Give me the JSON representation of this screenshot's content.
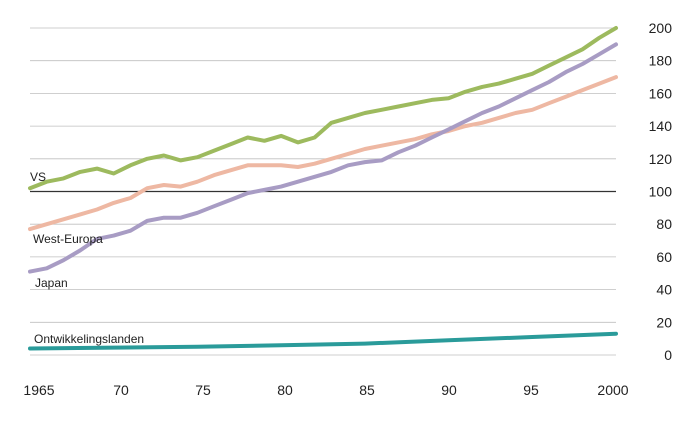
{
  "chart_data": {
    "type": "line",
    "title": "",
    "xlabel": "",
    "ylabel": "",
    "xlim": [
      1965,
      2000
    ],
    "ylim": [
      0,
      200
    ],
    "grid": true,
    "x_ticks": [
      "1965",
      "70",
      "75",
      "80",
      "85",
      "90",
      "95",
      "2000"
    ],
    "y_ticks": [
      "0",
      "20",
      "40",
      "60",
      "80",
      "100",
      "120",
      "140",
      "160",
      "180",
      "200"
    ],
    "colors": {
      "VS": "#9dba5e",
      "West-Europa": "#eeb8a3",
      "Japan": "#a89cc4",
      "Ontwikkelingslanden": "#2a9b9a",
      "grid": "#bfbfbf",
      "baseline": "#333333"
    },
    "series": [
      {
        "name": "VS",
        "x": [
          1965,
          1966,
          1967,
          1968,
          1969,
          1970,
          1971,
          1972,
          1973,
          1974,
          1975,
          1976,
          1977,
          1978,
          1979,
          1980,
          1981,
          1982,
          1983,
          1984,
          1985,
          1986,
          1987,
          1988,
          1989,
          1990,
          1991,
          1992,
          1993,
          1994,
          1995,
          1996,
          1997,
          1998,
          1999,
          2000
        ],
        "y": [
          102,
          106,
          108,
          112,
          114,
          111,
          116,
          120,
          122,
          119,
          121,
          125,
          129,
          133,
          131,
          134,
          130,
          133,
          142,
          145,
          148,
          150,
          152,
          154,
          156,
          157,
          161,
          164,
          166,
          169,
          172,
          177,
          182,
          187,
          194,
          200
        ]
      },
      {
        "name": "West-Europa",
        "x": [
          1965,
          1966,
          1967,
          1968,
          1969,
          1970,
          1971,
          1972,
          1973,
          1974,
          1975,
          1976,
          1977,
          1978,
          1979,
          1980,
          1981,
          1982,
          1983,
          1984,
          1985,
          1986,
          1987,
          1988,
          1989,
          1990,
          1991,
          1992,
          1993,
          1994,
          1995,
          1996,
          1997,
          1998,
          1999,
          2000
        ],
        "y": [
          77,
          80,
          83,
          86,
          89,
          93,
          96,
          102,
          104,
          103,
          106,
          110,
          113,
          116,
          116,
          116,
          115,
          117,
          120,
          123,
          126,
          128,
          130,
          132,
          135,
          137,
          140,
          142,
          145,
          148,
          150,
          154,
          158,
          162,
          166,
          170
        ]
      },
      {
        "name": "Japan",
        "x": [
          1965,
          1966,
          1967,
          1968,
          1969,
          1970,
          1971,
          1972,
          1973,
          1974,
          1975,
          1976,
          1977,
          1978,
          1979,
          1980,
          1981,
          1982,
          1983,
          1984,
          1985,
          1986,
          1987,
          1988,
          1989,
          1990,
          1991,
          1992,
          1993,
          1994,
          1995,
          1996,
          1997,
          1998,
          1999,
          2000
        ],
        "y": [
          51,
          53,
          58,
          64,
          71,
          73,
          76,
          82,
          84,
          84,
          87,
          91,
          95,
          99,
          101,
          103,
          106,
          109,
          112,
          116,
          118,
          119,
          124,
          128,
          133,
          138,
          143,
          148,
          152,
          157,
          162,
          167,
          173,
          178,
          184,
          190
        ]
      },
      {
        "name": "Ontwikkelingslanden",
        "x": [
          1965,
          1970,
          1975,
          1980,
          1985,
          1990,
          1995,
          2000
        ],
        "y": [
          4,
          4.5,
          5,
          6,
          7,
          9,
          11,
          13
        ]
      }
    ]
  }
}
